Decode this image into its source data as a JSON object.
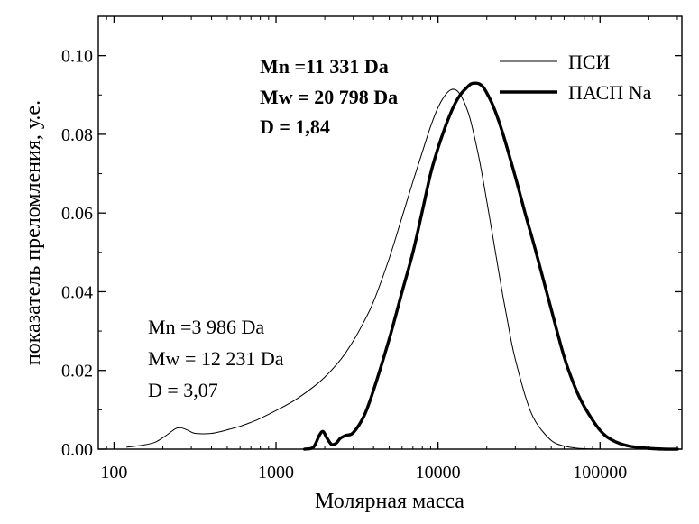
{
  "chart_data": {
    "type": "line",
    "xlabel": "Молярная масса",
    "ylabel": "показатель преломления, у.е.",
    "x_scale": "log",
    "xlim": [
      80,
      320000
    ],
    "ylim": [
      0,
      0.11
    ],
    "x_ticks": [
      {
        "value": 100,
        "label": "100"
      },
      {
        "value": 1000,
        "label": "1000"
      },
      {
        "value": 10000,
        "label": "10000"
      },
      {
        "value": 100000,
        "label": "100000"
      }
    ],
    "y_ticks": [
      {
        "value": 0,
        "label": "0.00"
      },
      {
        "value": 0.02,
        "label": "0.02"
      },
      {
        "value": 0.04,
        "label": "0.04"
      },
      {
        "value": 0.06,
        "label": "0.06"
      },
      {
        "value": 0.08,
        "label": "0.08"
      },
      {
        "value": 0.1,
        "label": "0.10"
      }
    ],
    "grid": false,
    "legend_position": "top-right",
    "series": [
      {
        "name": "ПСИ",
        "style": "thin",
        "x": [
          120,
          150,
          180,
          210,
          240,
          260,
          285,
          310,
          350,
          400,
          450,
          500,
          600,
          700,
          800,
          1000,
          1300,
          1700,
          2000,
          2500,
          3000,
          3500,
          4000,
          5000,
          6000,
          7000,
          8000,
          9000,
          10000,
          11000,
          12000,
          13000,
          14000,
          15000,
          16000,
          18000,
          20000,
          22000,
          25000,
          28000,
          30000,
          35000,
          40000,
          50000,
          60000,
          70000,
          80000,
          100000
        ],
        "y": [
          0.0005,
          0.001,
          0.0018,
          0.0035,
          0.0052,
          0.0054,
          0.0048,
          0.0041,
          0.0039,
          0.004,
          0.0044,
          0.0049,
          0.0058,
          0.0068,
          0.0078,
          0.0098,
          0.0124,
          0.0158,
          0.0183,
          0.0227,
          0.0275,
          0.0325,
          0.0375,
          0.0485,
          0.059,
          0.068,
          0.0755,
          0.082,
          0.0868,
          0.0898,
          0.0913,
          0.0912,
          0.0895,
          0.0867,
          0.083,
          0.0735,
          0.063,
          0.053,
          0.0395,
          0.0285,
          0.0228,
          0.0128,
          0.007,
          0.0022,
          0.0008,
          0.0003,
          0.0001,
          0
        ]
      },
      {
        "name": "ПАСП Na",
        "style": "thick",
        "x": [
          1500,
          1700,
          1850,
          1950,
          2050,
          2200,
          2350,
          2500,
          2700,
          3000,
          3500,
          4000,
          5000,
          6000,
          7000,
          8000,
          9000,
          10000,
          11000,
          12000,
          13000,
          14000,
          15000,
          16000,
          17000,
          18000,
          19000,
          20000,
          22000,
          25000,
          30000,
          35000,
          40000,
          50000,
          60000,
          70000,
          80000,
          100000,
          120000,
          150000,
          200000,
          250000,
          300000
        ],
        "y": [
          0,
          0.0005,
          0.0035,
          0.0045,
          0.003,
          0.0012,
          0.0015,
          0.0028,
          0.0035,
          0.0042,
          0.0085,
          0.015,
          0.028,
          0.04,
          0.05,
          0.0605,
          0.07,
          0.0765,
          0.0815,
          0.0855,
          0.0885,
          0.0905,
          0.0918,
          0.0928,
          0.093,
          0.0928,
          0.092,
          0.0905,
          0.087,
          0.0805,
          0.0692,
          0.059,
          0.0505,
          0.0355,
          0.0235,
          0.0158,
          0.0108,
          0.0048,
          0.0022,
          0.0008,
          0.0002,
          0,
          0
        ]
      }
    ],
    "legend": [
      {
        "label": "ПСИ",
        "style": "thin"
      },
      {
        "label": "ПАСП Na",
        "style": "thick"
      }
    ],
    "annotations": [
      {
        "series": "ПАСП Na",
        "bold": true,
        "lines": [
          "Mn =11 331 Da",
          "Mw = 20 798 Da",
          "D = 1,84"
        ]
      },
      {
        "series": "ПСИ",
        "bold": false,
        "lines": [
          "Mn =3 986 Da",
          "Mw = 12 231 Da",
          "D = 3,07"
        ]
      }
    ]
  }
}
